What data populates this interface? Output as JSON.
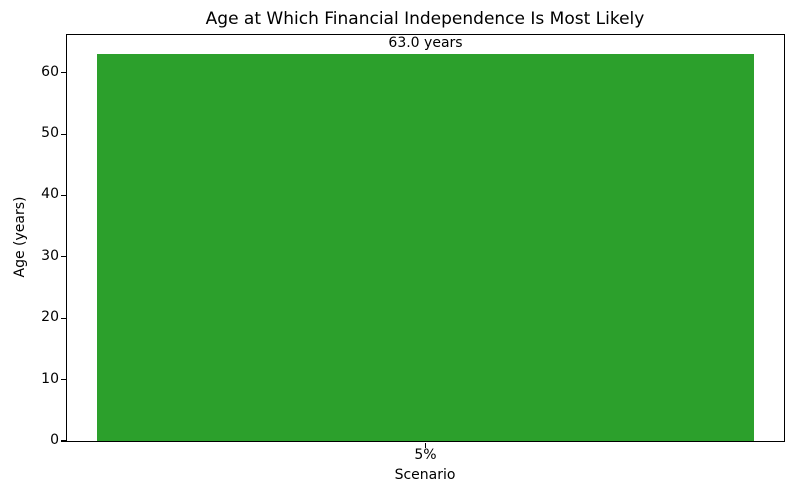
{
  "chart_data": {
    "type": "bar",
    "title": "Age at Which Financial Independence Is Most Likely",
    "xlabel": "Scenario",
    "ylabel": "Age (years)",
    "categories": [
      "5%"
    ],
    "values": [
      63.0
    ],
    "bar_labels": [
      "63.0 years"
    ],
    "bar_color": "#2ca02c",
    "ylim": [
      0,
      66.15
    ],
    "yticks": [
      0,
      10,
      20,
      30,
      40,
      50,
      60
    ],
    "grid": false,
    "legend_position": "none"
  }
}
